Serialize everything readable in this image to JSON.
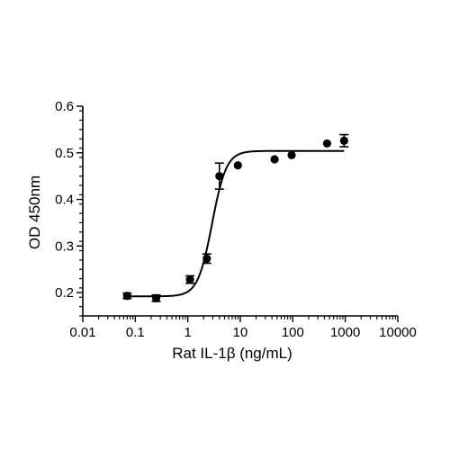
{
  "chart_data": {
    "type": "scatter",
    "title": "",
    "xlabel": "Rat IL-1β (ng/mL)",
    "ylabel": "OD 450nm",
    "xscale": "log",
    "xlim": [
      0.01,
      10000
    ],
    "ylim": [
      0.15,
      0.6
    ],
    "grid": false,
    "legend": "none",
    "x_ticks": [
      0.01,
      0.1,
      1,
      10,
      100,
      1000,
      10000
    ],
    "x_tick_labels": [
      "0.01",
      "0.1",
      "1",
      "10",
      "100",
      "1000",
      "10000"
    ],
    "y_ticks": [
      0.2,
      0.3,
      0.4,
      0.5,
      0.6
    ],
    "y_tick_labels": [
      "0.2",
      "0.3",
      "0.4",
      "0.5",
      "0.6"
    ],
    "series": [
      {
        "points": [
          {
            "x": 0.07,
            "y": 0.193,
            "err": 0.006
          },
          {
            "x": 0.25,
            "y": 0.188,
            "err": 0.007
          },
          {
            "x": 1.1,
            "y": 0.228,
            "err": 0.008
          },
          {
            "x": 2.3,
            "y": 0.273,
            "err": 0.01
          },
          {
            "x": 4.0,
            "y": 0.45,
            "err": 0.028
          },
          {
            "x": 9.0,
            "y": 0.473,
            "err": 0
          },
          {
            "x": 45,
            "y": 0.486,
            "err": 0
          },
          {
            "x": 95,
            "y": 0.495,
            "err": 0
          },
          {
            "x": 450,
            "y": 0.52,
            "err": 0
          },
          {
            "x": 950,
            "y": 0.526,
            "err": 0.013
          }
        ],
        "fit": {
          "model": "4PL",
          "bottom": 0.192,
          "top": 0.504,
          "ec50": 2.9,
          "hill": 3.2,
          "x_range": [
            0.07,
            950
          ]
        },
        "color": "#000000"
      }
    ]
  }
}
